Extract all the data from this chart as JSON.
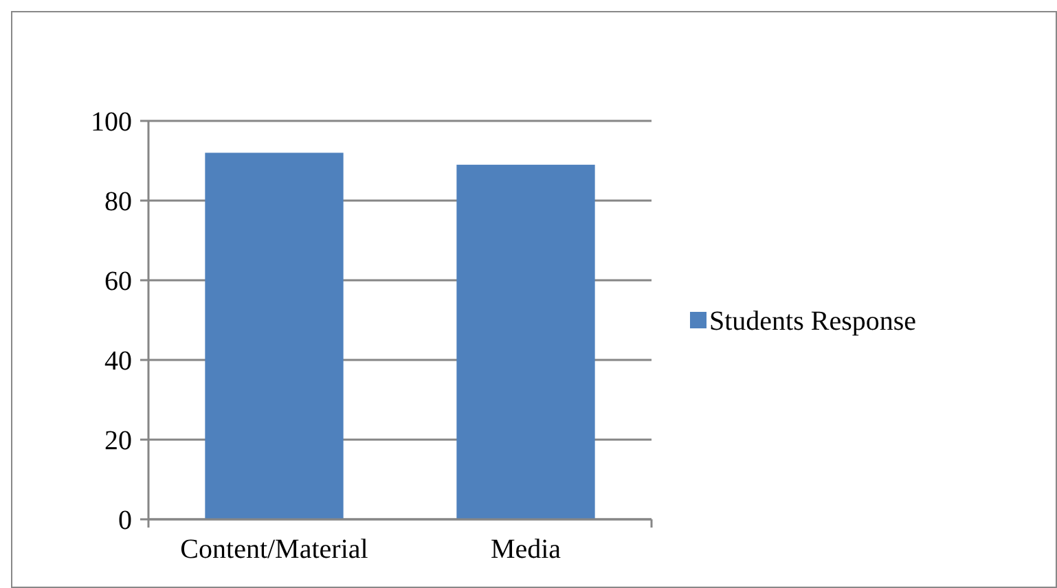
{
  "chart_data": {
    "type": "bar",
    "categories": [
      "Content/Material",
      "Media"
    ],
    "series": [
      {
        "name": "Students Response",
        "color": "#4f81bd",
        "values": [
          92,
          89
        ]
      }
    ],
    "ylim": [
      0,
      100
    ],
    "yticks": [
      0,
      20,
      40,
      60,
      80,
      100
    ],
    "grid": "y",
    "legend": "right"
  }
}
